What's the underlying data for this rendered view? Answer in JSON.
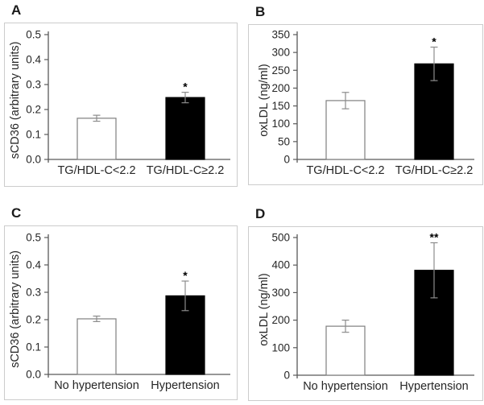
{
  "figure": {
    "background": "#ffffff",
    "panel_border_color": "#cccccc",
    "axis_color": "#595959",
    "error_bar_color": "#8c8c8c",
    "bar_outline_color": "#7f7f7f",
    "text_color": "#262626",
    "significance_color": "#000000"
  },
  "chart_data": [
    {
      "panel": "A",
      "type": "bar",
      "title": "",
      "categories": [
        "TG/HDL-C<2.2",
        "TG/HDL-C≥2.2"
      ],
      "values": [
        0.165,
        0.248
      ],
      "errors": [
        0.012,
        0.021
      ],
      "significance": [
        "",
        "*"
      ],
      "bar_fills": [
        "#ffffff",
        "#000000"
      ],
      "xlabel": "",
      "ylabel": "sCD36 (arbitrary units)",
      "ylim": [
        0,
        0.5
      ],
      "ytick_step": 0.1,
      "ytick_decimals": 1,
      "grid": false,
      "legend": "none"
    },
    {
      "panel": "B",
      "type": "bar",
      "title": "",
      "categories": [
        "TG/HDL-C<2.2",
        "TG/HDL-C≥2.2"
      ],
      "values": [
        165,
        268
      ],
      "errors": [
        23,
        47
      ],
      "significance": [
        "",
        "*"
      ],
      "bar_fills": [
        "#ffffff",
        "#000000"
      ],
      "xlabel": "",
      "ylabel": "oxLDL (ng/ml)",
      "ylim": [
        0,
        350
      ],
      "ytick_step": 50,
      "ytick_decimals": 0,
      "grid": false,
      "legend": "none"
    },
    {
      "panel": "C",
      "type": "bar",
      "title": "",
      "categories": [
        "No hypertension",
        "Hypertension"
      ],
      "values": [
        0.203,
        0.287
      ],
      "errors": [
        0.01,
        0.054
      ],
      "significance": [
        "",
        "*"
      ],
      "bar_fills": [
        "#ffffff",
        "#000000"
      ],
      "xlabel": "",
      "ylabel": "sCD36 (arbitrary units)",
      "ylim": [
        0,
        0.5
      ],
      "ytick_step": 0.1,
      "ytick_decimals": 1,
      "grid": false,
      "legend": "none"
    },
    {
      "panel": "D",
      "type": "bar",
      "title": "",
      "categories": [
        "No hypertension",
        "Hypertension"
      ],
      "values": [
        178,
        381
      ],
      "errors": [
        22,
        100
      ],
      "significance": [
        "",
        "**"
      ],
      "bar_fills": [
        "#ffffff",
        "#000000"
      ],
      "xlabel": "",
      "ylabel": "oxLDL (ng/ml)",
      "ylim": [
        0,
        500
      ],
      "ytick_step": 100,
      "ytick_decimals": 0,
      "grid": false,
      "legend": "none"
    }
  ]
}
